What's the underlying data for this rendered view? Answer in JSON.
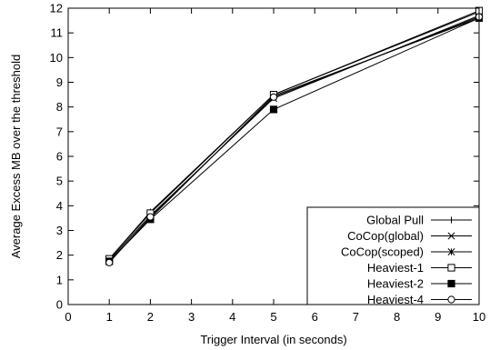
{
  "chart_data": {
    "type": "line",
    "title": "",
    "xlabel": "Trigger Interval (in seconds)",
    "ylabel": "Average Excess MB over the threshold",
    "xlim": [
      0,
      10
    ],
    "ylim": [
      0,
      12
    ],
    "xticks": [
      "0",
      "1",
      "2",
      "3",
      "4",
      "5",
      "6",
      "7",
      "8",
      "9",
      "10"
    ],
    "yticks": [
      "0",
      "1",
      "2",
      "3",
      "4",
      "5",
      "6",
      "7",
      "8",
      "9",
      "10",
      "11",
      "12"
    ],
    "grid": false,
    "legend_position": "bottom-right",
    "x": [
      1,
      2,
      5,
      10
    ],
    "series": [
      {
        "name": "Global Pull",
        "marker": "plus",
        "values": [
          1.85,
          3.75,
          8.5,
          11.85
        ]
      },
      {
        "name": "CoCop(global)",
        "marker": "cross",
        "values": [
          1.8,
          3.6,
          8.35,
          11.7
        ]
      },
      {
        "name": "CoCop(scoped)",
        "marker": "star",
        "values": [
          1.75,
          3.5,
          8.45,
          11.6
        ]
      },
      {
        "name": "Heaviest-1",
        "marker": "square-open",
        "values": [
          1.85,
          3.7,
          8.5,
          11.9
        ]
      },
      {
        "name": "Heaviest-2",
        "marker": "square-filled",
        "values": [
          1.75,
          3.45,
          7.9,
          11.6
        ]
      },
      {
        "name": "Heaviest-4",
        "marker": "circle-open",
        "values": [
          1.7,
          3.55,
          8.4,
          11.65
        ]
      }
    ]
  }
}
